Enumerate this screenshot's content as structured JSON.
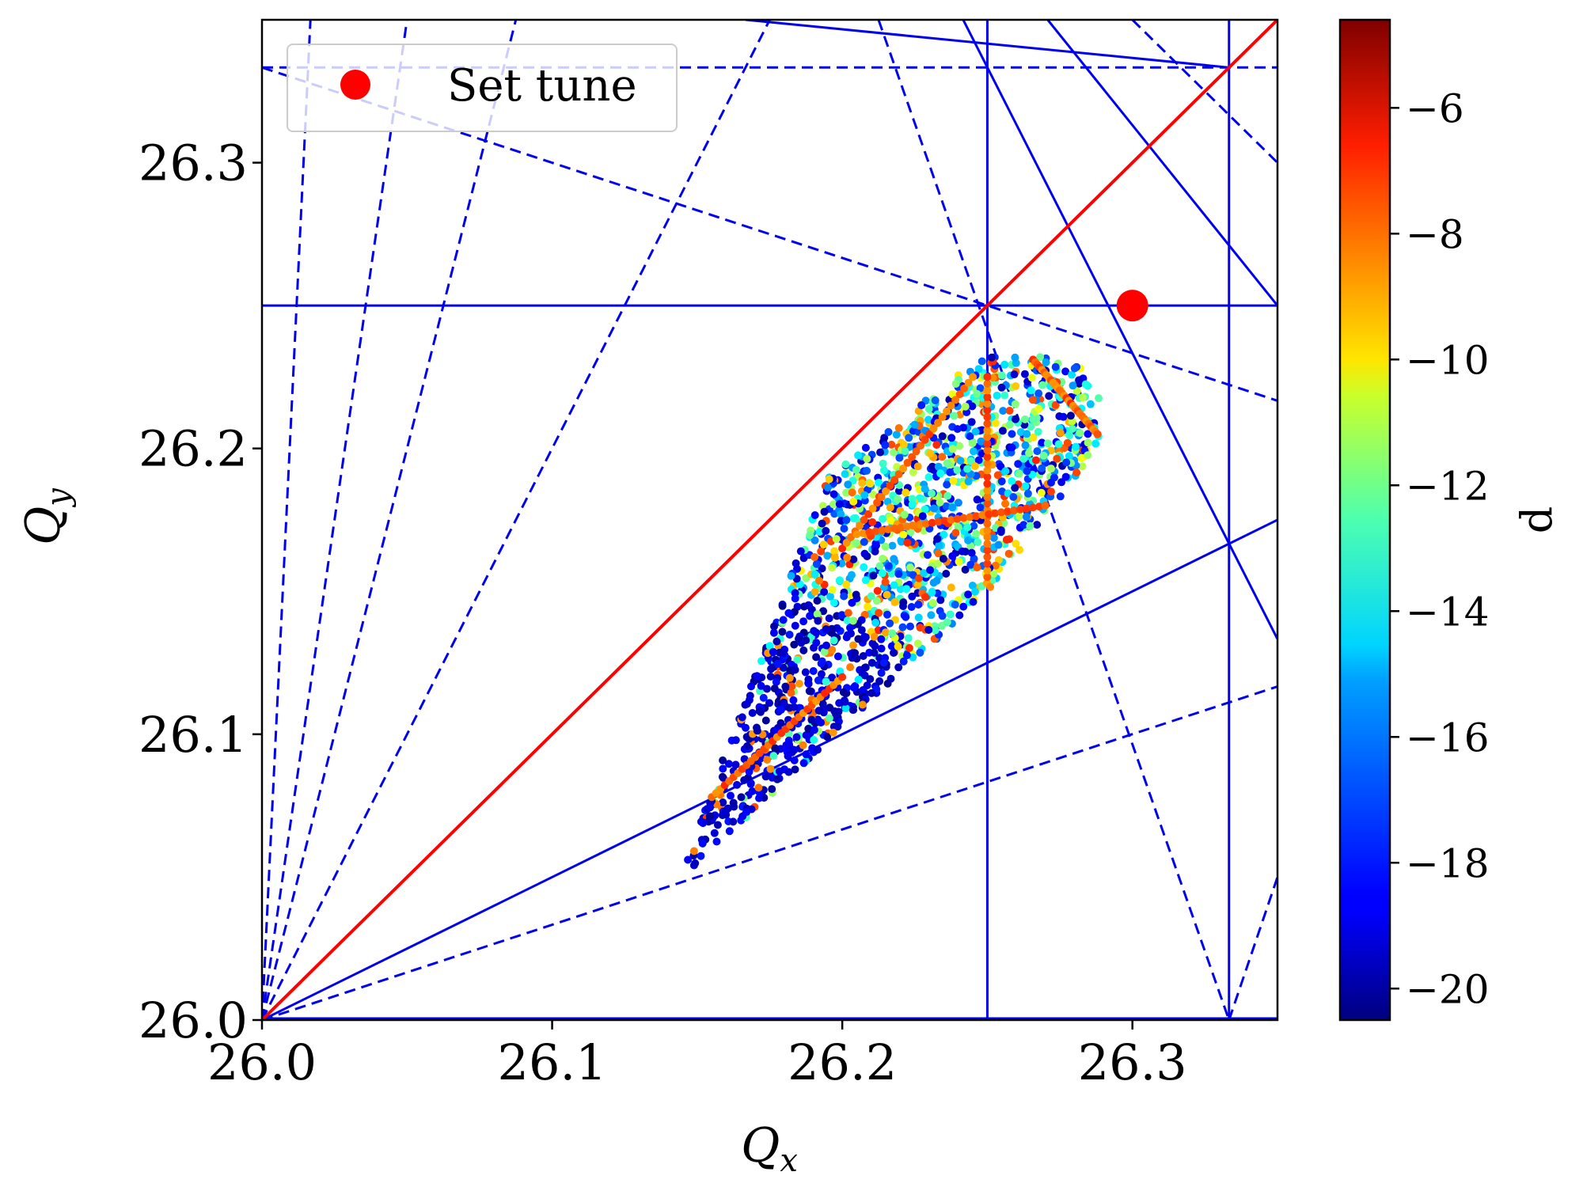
{
  "chart_data": {
    "type": "scatter",
    "xlabel": "Q_x",
    "ylabel": "Q_y",
    "xlabel_main": "Q",
    "xlabel_sub": "x",
    "ylabel_main": "Q",
    "ylabel_sub": "y",
    "xlim": [
      26.0,
      26.35
    ],
    "ylim": [
      26.0,
      26.35
    ],
    "xticks": [
      26.0,
      26.1,
      26.2,
      26.3
    ],
    "xtick_labels": [
      "26.0",
      "26.1",
      "26.2",
      "26.3"
    ],
    "yticks": [
      26.0,
      26.1,
      26.2,
      26.3
    ],
    "ytick_labels": [
      "26.0",
      "26.1",
      "26.2",
      "26.3"
    ],
    "grid": false,
    "legend": {
      "position": "top-left",
      "entries": [
        {
          "label": "Set tune",
          "color": "#ff0000",
          "marker": "circle"
        }
      ]
    },
    "set_tune": {
      "x": 26.3,
      "y": 26.25,
      "color": "#ff0000"
    },
    "colorbar": {
      "label": "d",
      "range": [
        -20.5,
        -4.6
      ],
      "ticks": [
        -6,
        -8,
        -10,
        -12,
        -14,
        -16,
        -18,
        -20
      ],
      "tick_labels": [
        "−6",
        "−8",
        "−10",
        "−12",
        "−14",
        "−16",
        "−18",
        "−20"
      ],
      "colormap": "jet"
    },
    "resonance_lines": {
      "color": "#0000ee",
      "diagonal_color": "#ff0000",
      "solid": [
        [
          [
            26.25,
            26.0
          ],
          [
            26.25,
            26.35
          ]
        ],
        [
          [
            26.3333,
            26.0
          ],
          [
            26.3333,
            26.35
          ]
        ],
        [
          [
            26.0,
            26.25
          ],
          [
            26.35,
            26.25
          ]
        ],
        [
          [
            26.0,
            26.0
          ],
          [
            26.35,
            26.175
          ]
        ],
        [
          [
            26.1667,
            26.5
          ],
          [
            26.35,
            26.1333
          ]
        ],
        [
          [
            26.1667,
            26.35
          ],
          [
            26.3333,
            26.3333
          ]
        ],
        [
          [
            26.2708,
            26.35
          ],
          [
            26.35,
            26.25
          ]
        ]
      ],
      "dashed": [
        [
          [
            26.0,
            26.0
          ],
          [
            26.05,
            26.35
          ]
        ],
        [
          [
            26.0,
            26.0
          ],
          [
            26.0875,
            26.35
          ]
        ],
        [
          [
            26.0,
            26.0
          ],
          [
            26.175,
            26.35
          ]
        ],
        [
          [
            26.0,
            26.0
          ],
          [
            26.35,
            26.1167
          ]
        ],
        [
          [
            26.0,
            26.3333
          ],
          [
            26.35,
            26.3333
          ]
        ],
        [
          [
            26.0,
            26.3333
          ],
          [
            26.35,
            26.2167
          ]
        ],
        [
          [
            26.2125,
            26.35
          ],
          [
            26.3333,
            26.0
          ]
        ],
        [
          [
            26.3,
            26.35
          ],
          [
            26.35,
            26.3
          ]
        ],
        [
          [
            26.3333,
            26.0
          ],
          [
            26.35,
            26.05
          ]
        ],
        [
          [
            26.0,
            26.0
          ],
          [
            26.0167,
            26.35
          ]
        ]
      ],
      "diagonal": [
        [
          26.0,
          26.0
        ],
        [
          26.35,
          26.35
        ]
      ]
    },
    "tune_footprint": {
      "description_points": "dense colored scatter cloud",
      "vertices": [
        [
          26.143,
          26.048
        ],
        [
          26.195,
          26.19
        ],
        [
          26.248,
          26.232
        ],
        [
          26.28,
          26.232
        ],
        [
          26.29,
          26.215
        ],
        [
          26.288,
          26.2
        ],
        [
          26.25,
          26.15
        ],
        [
          26.143,
          26.048
        ]
      ],
      "d_range": [
        -20.5,
        -6.5
      ]
    }
  }
}
